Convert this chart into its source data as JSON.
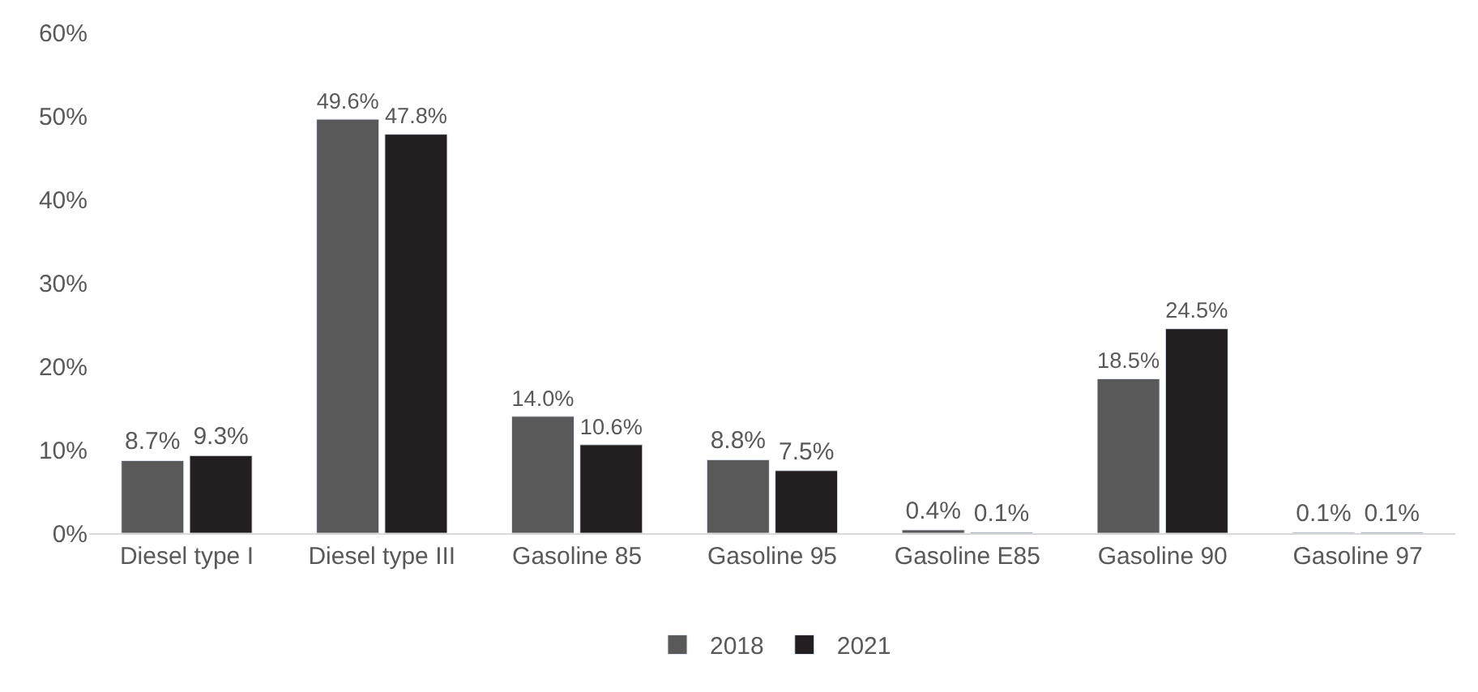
{
  "chart_data": {
    "type": "bar",
    "categories": [
      "Diesel type I",
      "Diesel type III",
      "Gasoline 85",
      "Gasoline 95",
      "Gasoline E85",
      "Gasoline 90",
      "Gasoline 97"
    ],
    "series": [
      {
        "name": "2018",
        "color": "#595959",
        "values": [
          8.7,
          49.6,
          14.0,
          8.8,
          0.4,
          18.5,
          0.1
        ],
        "value_labels": [
          "8.7%",
          "49.6%",
          "14.0%",
          "8.8%",
          "0.4%",
          "18.5%",
          "0.1%"
        ]
      },
      {
        "name": "2021",
        "color": "#231f20",
        "values": [
          9.3,
          47.8,
          10.6,
          7.5,
          0.1,
          24.5,
          0.1
        ],
        "value_labels": [
          "9.3%",
          "47.8%",
          "10.6%",
          "7.5%",
          "0.1%",
          "24.5%",
          "0.1%"
        ]
      }
    ],
    "ylim": [
      0,
      60
    ],
    "yticks": [
      {
        "value": 0,
        "label": "0%"
      },
      {
        "value": 10,
        "label": "10%"
      },
      {
        "value": 20,
        "label": "20%"
      },
      {
        "value": 30,
        "label": "30%"
      },
      {
        "value": 40,
        "label": "40%"
      },
      {
        "value": 50,
        "label": "50%"
      },
      {
        "value": 60,
        "label": "60%"
      }
    ],
    "legend": "bottom"
  }
}
